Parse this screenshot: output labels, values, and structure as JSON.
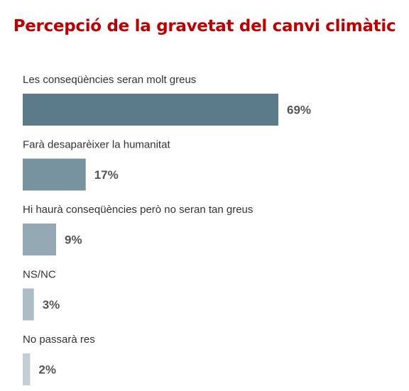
{
  "title": "Percepció de la gravetat del canvi climàtic",
  "colors": {
    "title": "#c00000",
    "bars": [
      "#5b7b8a",
      "#7893a0",
      "#94a9b3",
      "#adbdc5",
      "#c3cfd5"
    ],
    "label_text": "#333333",
    "value_text": "#555555"
  },
  "chart_data": {
    "type": "bar",
    "orientation": "horizontal",
    "title": "Percepció de la gravetat del canvi climàtic",
    "categories": [
      "Les conseqüències seran molt greus",
      "Farà desaparèixer la humanitat",
      "Hi haurà conseqüències però no seran tan greus",
      "NS/NC",
      "No passarà res"
    ],
    "values": [
      69,
      17,
      9,
      3,
      2
    ],
    "value_labels": [
      "69%",
      "17%",
      "9%",
      "3%",
      "2%"
    ],
    "unit": "%",
    "xlim": [
      0,
      69
    ],
    "grid": false,
    "legend": "none"
  }
}
